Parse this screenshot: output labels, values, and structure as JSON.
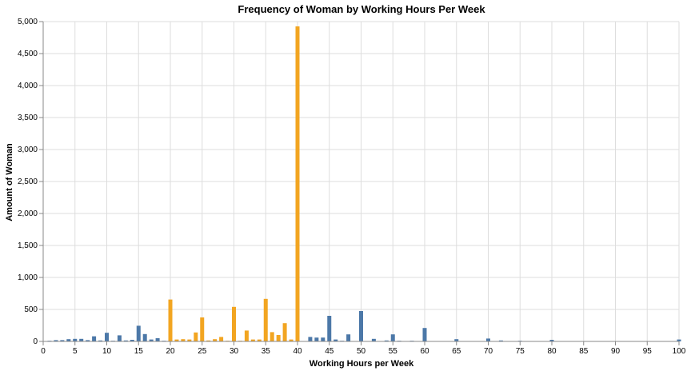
{
  "chart_data": {
    "type": "bar",
    "title": "Frequency of Woman by Working Hours Per Week",
    "xlabel": "Working Hours per Week",
    "ylabel": "Amount of Woman",
    "xlim": [
      0,
      100
    ],
    "ylim": [
      0,
      5000
    ],
    "x_ticks": [
      0,
      5,
      10,
      15,
      20,
      25,
      30,
      35,
      40,
      45,
      50,
      55,
      60,
      65,
      70,
      75,
      80,
      85,
      90,
      95,
      100
    ],
    "y_ticks": [
      {
        "value": 0,
        "label": "0"
      },
      {
        "value": 500,
        "label": "500"
      },
      {
        "value": 1000,
        "label": "1,000"
      },
      {
        "value": 1500,
        "label": "1,500"
      },
      {
        "value": 2000,
        "label": "2,000"
      },
      {
        "value": 2500,
        "label": "2,500"
      },
      {
        "value": 3000,
        "label": "3,000"
      },
      {
        "value": 3500,
        "label": "3,500"
      },
      {
        "value": 4000,
        "label": "4,000"
      },
      {
        "value": 4500,
        "label": "4,500"
      },
      {
        "value": 5000,
        "label": "5,000"
      }
    ],
    "grid": true,
    "colors": {
      "highlight": "#f2a521",
      "default": "#4c78a8"
    },
    "bars": [
      {
        "x": 1,
        "value": 10,
        "highlight": false
      },
      {
        "x": 2,
        "value": 20,
        "highlight": false
      },
      {
        "x": 3,
        "value": 20,
        "highlight": false
      },
      {
        "x": 4,
        "value": 35,
        "highlight": false
      },
      {
        "x": 5,
        "value": 40,
        "highlight": false
      },
      {
        "x": 6,
        "value": 40,
        "highlight": false
      },
      {
        "x": 7,
        "value": 20,
        "highlight": false
      },
      {
        "x": 8,
        "value": 80,
        "highlight": false
      },
      {
        "x": 9,
        "value": 15,
        "highlight": false
      },
      {
        "x": 10,
        "value": 135,
        "highlight": false
      },
      {
        "x": 11,
        "value": 10,
        "highlight": false
      },
      {
        "x": 12,
        "value": 95,
        "highlight": false
      },
      {
        "x": 13,
        "value": 15,
        "highlight": false
      },
      {
        "x": 14,
        "value": 25,
        "highlight": false
      },
      {
        "x": 15,
        "value": 245,
        "highlight": false
      },
      {
        "x": 16,
        "value": 115,
        "highlight": false
      },
      {
        "x": 17,
        "value": 30,
        "highlight": false
      },
      {
        "x": 18,
        "value": 50,
        "highlight": false
      },
      {
        "x": 19,
        "value": 10,
        "highlight": false
      },
      {
        "x": 20,
        "value": 655,
        "highlight": true
      },
      {
        "x": 21,
        "value": 30,
        "highlight": true
      },
      {
        "x": 22,
        "value": 35,
        "highlight": true
      },
      {
        "x": 23,
        "value": 30,
        "highlight": true
      },
      {
        "x": 24,
        "value": 140,
        "highlight": true
      },
      {
        "x": 25,
        "value": 375,
        "highlight": true
      },
      {
        "x": 26,
        "value": 15,
        "highlight": true
      },
      {
        "x": 27,
        "value": 35,
        "highlight": true
      },
      {
        "x": 28,
        "value": 70,
        "highlight": true
      },
      {
        "x": 29,
        "value": 10,
        "highlight": true
      },
      {
        "x": 30,
        "value": 540,
        "highlight": true
      },
      {
        "x": 31,
        "value": 10,
        "highlight": true
      },
      {
        "x": 32,
        "value": 170,
        "highlight": true
      },
      {
        "x": 33,
        "value": 30,
        "highlight": true
      },
      {
        "x": 34,
        "value": 30,
        "highlight": true
      },
      {
        "x": 35,
        "value": 665,
        "highlight": true
      },
      {
        "x": 36,
        "value": 145,
        "highlight": true
      },
      {
        "x": 37,
        "value": 100,
        "highlight": true
      },
      {
        "x": 38,
        "value": 285,
        "highlight": true
      },
      {
        "x": 39,
        "value": 30,
        "highlight": true
      },
      {
        "x": 40,
        "value": 4925,
        "highlight": true
      },
      {
        "x": 42,
        "value": 70,
        "highlight": false
      },
      {
        "x": 43,
        "value": 60,
        "highlight": false
      },
      {
        "x": 44,
        "value": 60,
        "highlight": false
      },
      {
        "x": 45,
        "value": 400,
        "highlight": false
      },
      {
        "x": 46,
        "value": 30,
        "highlight": false
      },
      {
        "x": 47,
        "value": 10,
        "highlight": false
      },
      {
        "x": 48,
        "value": 110,
        "highlight": false
      },
      {
        "x": 49,
        "value": 5,
        "highlight": false
      },
      {
        "x": 50,
        "value": 475,
        "highlight": false
      },
      {
        "x": 52,
        "value": 40,
        "highlight": false
      },
      {
        "x": 54,
        "value": 15,
        "highlight": false
      },
      {
        "x": 55,
        "value": 110,
        "highlight": false
      },
      {
        "x": 56,
        "value": 10,
        "highlight": false
      },
      {
        "x": 57,
        "value": 5,
        "highlight": false
      },
      {
        "x": 58,
        "value": 10,
        "highlight": false
      },
      {
        "x": 60,
        "value": 210,
        "highlight": false
      },
      {
        "x": 62,
        "value": 5,
        "highlight": false
      },
      {
        "x": 64,
        "value": 5,
        "highlight": false
      },
      {
        "x": 65,
        "value": 35,
        "highlight": false
      },
      {
        "x": 66,
        "value": 5,
        "highlight": false
      },
      {
        "x": 70,
        "value": 45,
        "highlight": false
      },
      {
        "x": 72,
        "value": 15,
        "highlight": false
      },
      {
        "x": 75,
        "value": 10,
        "highlight": false
      },
      {
        "x": 80,
        "value": 25,
        "highlight": false
      },
      {
        "x": 84,
        "value": 5,
        "highlight": false
      },
      {
        "x": 99,
        "value": 5,
        "highlight": false
      },
      {
        "x": 100,
        "value": 30,
        "highlight": false
      }
    ]
  }
}
